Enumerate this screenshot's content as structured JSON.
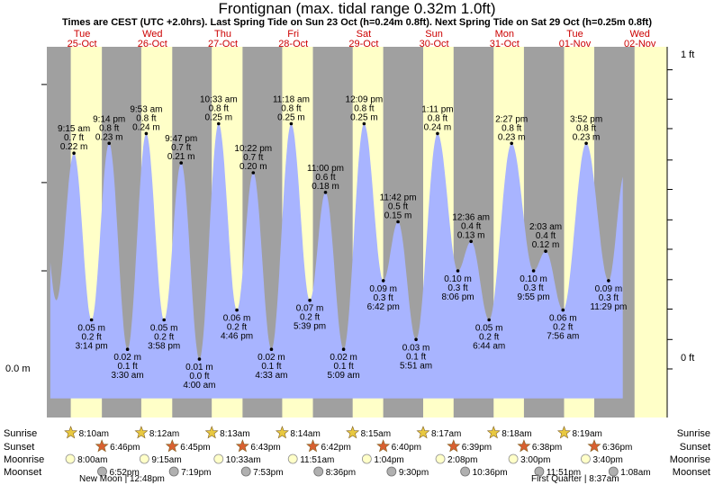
{
  "chart_data": {
    "type": "area",
    "title": "Frontignan (max. tidal range 0.32m 1.0ft)",
    "subtitle": "Times are CEST (UTC +2.0hrs). Last Spring Tide on Sun 23 Oct (h=0.24m 0.8ft). Next Spring Tide on Sat 29 Oct (h=0.25m 0.8ft)",
    "ylabel_left": "0.0 m",
    "ylabel_right": [
      "1 ft",
      "0 ft"
    ],
    "x_range_days": [
      0,
      10
    ],
    "y_range_m": [
      -0.01,
      0.305
    ],
    "days": [
      {
        "dow": "Tue",
        "date": "25-Oct",
        "sunrise": "8:10am",
        "sunset": "6:46pm",
        "moonrise": "8:00am",
        "moonset": "6:52pm"
      },
      {
        "dow": "Wed",
        "date": "26-Oct",
        "sunrise": "8:12am",
        "sunset": "6:45pm",
        "moonrise": "9:15am",
        "moonset": "7:19pm"
      },
      {
        "dow": "Thu",
        "date": "27-Oct",
        "sunrise": "8:13am",
        "sunset": "6:43pm",
        "moonrise": "10:33am",
        "moonset": "7:53pm"
      },
      {
        "dow": "Fri",
        "date": "28-Oct",
        "sunrise": "8:14am",
        "sunset": "6:42pm",
        "moonrise": "11:51am",
        "moonset": "8:36pm"
      },
      {
        "dow": "Sat",
        "date": "29-Oct",
        "sunrise": "8:15am",
        "sunset": "6:40pm",
        "moonrise": "1:04pm",
        "moonset": "9:30pm"
      },
      {
        "dow": "Sun",
        "date": "30-Oct",
        "sunrise": "8:17am",
        "sunset": "6:39pm",
        "moonrise": "2:08pm",
        "moonset": "10:36pm"
      },
      {
        "dow": "Mon",
        "date": "31-Oct",
        "sunrise": "8:18am",
        "sunset": "6:38pm",
        "moonrise": "3:00pm",
        "moonset": "11:51pm"
      },
      {
        "dow": "Tue",
        "date": "01-Nov",
        "sunrise": "8:19am",
        "sunset": "6:36pm",
        "moonrise": "3:40pm",
        "moonset": "1:08am"
      },
      {
        "dow": "Wed",
        "date": "02-Nov"
      }
    ],
    "tides": [
      {
        "t": 0.385,
        "h": 0.22,
        "lbl": [
          "9:15 am",
          "0.7 ft",
          "0.22 m"
        ],
        "type": "high"
      },
      {
        "t": 0.635,
        "h": 0.05,
        "lbl": [
          "0.05 m",
          "0.2 ft",
          "3:14 pm"
        ],
        "type": "low"
      },
      {
        "t": 0.885,
        "h": 0.23,
        "lbl": [
          "9:14 pm",
          "0.8 ft",
          "0.23 m"
        ],
        "type": "high"
      },
      {
        "t": 1.146,
        "h": 0.02,
        "lbl": [
          "0.02 m",
          "0.1 ft",
          "3:30 am"
        ],
        "type": "low"
      },
      {
        "t": 1.412,
        "h": 0.24,
        "lbl": [
          "9:53 am",
          "0.8 ft",
          "0.24 m"
        ],
        "type": "high"
      },
      {
        "t": 1.665,
        "h": 0.05,
        "lbl": [
          "0.05 m",
          "0.2 ft",
          "3:58 pm"
        ],
        "type": "low"
      },
      {
        "t": 1.908,
        "h": 0.21,
        "lbl": [
          "9:47 pm",
          "0.7 ft",
          "0.21 m"
        ],
        "type": "high"
      },
      {
        "t": 2.167,
        "h": 0.01,
        "lbl": [
          "0.01 m",
          "0.0 ft",
          "4:00 am"
        ],
        "type": "low"
      },
      {
        "t": 2.44,
        "h": 0.25,
        "lbl": [
          "10:33 am",
          "0.8 ft",
          "0.25 m"
        ],
        "type": "high"
      },
      {
        "t": 2.699,
        "h": 0.06,
        "lbl": [
          "0.06 m",
          "0.2 ft",
          "4:46 pm"
        ],
        "type": "low"
      },
      {
        "t": 2.932,
        "h": 0.2,
        "lbl": [
          "10:22 pm",
          "0.7 ft",
          "0.20 m"
        ],
        "type": "high"
      },
      {
        "t": 3.19,
        "h": 0.02,
        "lbl": [
          "0.02 m",
          "0.1 ft",
          "4:33 am"
        ],
        "type": "low"
      },
      {
        "t": 3.471,
        "h": 0.25,
        "lbl": [
          "11:18 am",
          "0.8 ft",
          "0.25 m"
        ],
        "type": "high"
      },
      {
        "t": 3.735,
        "h": 0.07,
        "lbl": [
          "0.07 m",
          "0.2 ft",
          "5:39 pm"
        ],
        "type": "low"
      },
      {
        "t": 3.958,
        "h": 0.18,
        "lbl": [
          "11:00 pm",
          "0.6 ft",
          "0.18 m"
        ],
        "type": "high"
      },
      {
        "t": 4.215,
        "h": 0.02,
        "lbl": [
          "0.02 m",
          "0.1 ft",
          "5:09 am"
        ],
        "type": "low"
      },
      {
        "t": 4.506,
        "h": 0.25,
        "lbl": [
          "12:09 pm",
          "0.8 ft",
          "0.25 m"
        ],
        "type": "high"
      },
      {
        "t": 4.779,
        "h": 0.09,
        "lbl": [
          "0.09 m",
          "0.3 ft",
          "6:42 pm"
        ],
        "type": "low"
      },
      {
        "t": 4.988,
        "h": 0.15,
        "lbl": [
          "11:42 pm",
          "0.5 ft",
          "0.15 m"
        ],
        "type": "high"
      },
      {
        "t": 5.244,
        "h": 0.03,
        "lbl": [
          "0.03 m",
          "0.1 ft",
          "5:51 am"
        ],
        "type": "low"
      },
      {
        "t": 5.549,
        "h": 0.24,
        "lbl": [
          "1:11 pm",
          "0.8 ft",
          "0.24 m"
        ],
        "type": "high"
      },
      {
        "t": 5.838,
        "h": 0.1,
        "lbl": [
          "0.10 m",
          "0.3 ft",
          "8:06 pm"
        ],
        "type": "low"
      },
      {
        "t": 6.025,
        "h": 0.13,
        "lbl": [
          "12:36 am",
          "0.4 ft",
          "0.13 m"
        ],
        "type": "high"
      },
      {
        "t": 6.281,
        "h": 0.05,
        "lbl": [
          "0.05 m",
          "0.2 ft",
          "6:44 am"
        ],
        "type": "low"
      },
      {
        "t": 6.601,
        "h": 0.23,
        "lbl": [
          "2:27 pm",
          "0.8 ft",
          "0.23 m"
        ],
        "type": "high"
      },
      {
        "t": 6.913,
        "h": 0.1,
        "lbl": [
          "0.10 m",
          "0.3 ft",
          "9:55 pm"
        ],
        "type": "low"
      },
      {
        "t": 7.085,
        "h": 0.12,
        "lbl": [
          "2:03 am",
          "0.4 ft",
          "0.12 m"
        ],
        "type": "high"
      },
      {
        "t": 7.331,
        "h": 0.06,
        "lbl": [
          "0.06 m",
          "0.2 ft",
          "7:56 am"
        ],
        "type": "low"
      },
      {
        "t": 7.661,
        "h": 0.23,
        "lbl": [
          "3:52 pm",
          "0.8 ft",
          "0.23 m"
        ],
        "type": "high"
      },
      {
        "t": 7.978,
        "h": 0.09,
        "lbl": [
          "0.09 m",
          "0.3 ft",
          "11:29 pm"
        ],
        "type": "low"
      }
    ],
    "moon_events": [
      {
        "label": "New Moon",
        "time": "12:48pm"
      },
      {
        "label": "First Quarter",
        "time": "8:37am"
      }
    ],
    "row_labels": [
      "Sunrise",
      "Sunset",
      "Moonrise",
      "Moonset"
    ]
  },
  "colors": {
    "night": "#a0a0a0",
    "day": "#ffffc8",
    "water": "#a8b4ff",
    "sunrise_star": "#e8c840",
    "sunset_star": "#d86030",
    "moonrise": "#ffffc8",
    "moonset": "#b0b0b0"
  }
}
